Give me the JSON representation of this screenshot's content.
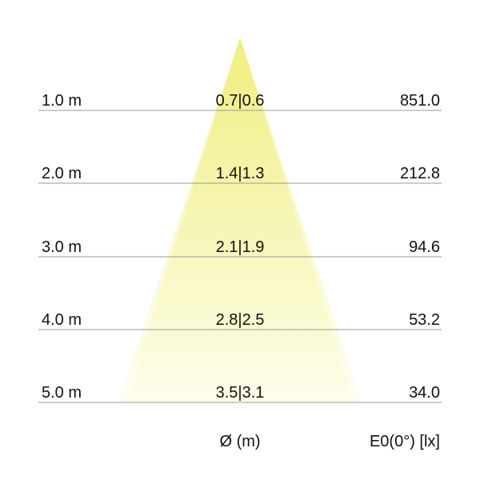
{
  "rows": [
    {
      "distance": "1.0 m",
      "diameter": "0.7|0.6",
      "illuminance": "851.0"
    },
    {
      "distance": "2.0 m",
      "diameter": "1.4|1.3",
      "illuminance": "212.8"
    },
    {
      "distance": "3.0 m",
      "diameter": "2.1|1.9",
      "illuminance": "94.6"
    },
    {
      "distance": "4.0 m",
      "diameter": "2.8|2.5",
      "illuminance": "53.2"
    },
    {
      "distance": "5.0 m",
      "diameter": "3.5|3.1",
      "illuminance": "34.0"
    }
  ],
  "footer": {
    "diameter_label": "Ø (m)",
    "illuminance_label": "E0(0°) [lx]"
  },
  "colors": {
    "cone_top": "#eeec6e",
    "cone_bottom": "#fdfde8",
    "line": "#999999"
  }
}
